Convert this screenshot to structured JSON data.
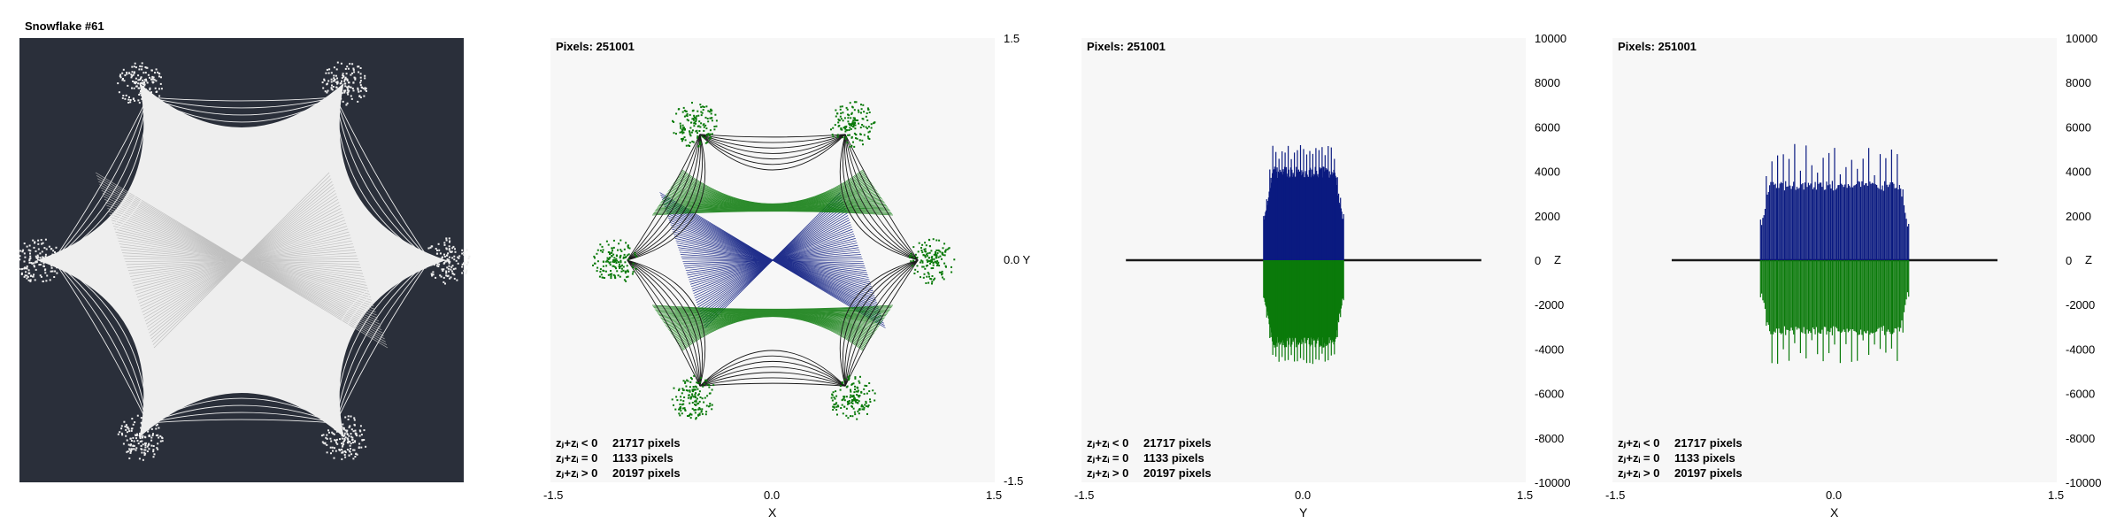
{
  "title": "Snowflake #61",
  "pixels_label": "Pixels: 251001",
  "colors": {
    "background": "#ffffff",
    "panel": "#f7f7f7",
    "thumb_bg": "#2a2f3a",
    "thumb_fg": "#eeeeee",
    "green": "#0a7a0a",
    "blue": "#0a1a80",
    "dark": "#1a1a1a",
    "legend_zero": "#7a0000"
  },
  "legend": [
    {
      "label": "zⱼ+zᵢ < 0",
      "count": "21717 pixels",
      "color": "#0a7a0a"
    },
    {
      "label": "zⱼ+zᵢ = 0",
      "count": "1133 pixels",
      "color": "#7a0000"
    },
    {
      "label": "zⱼ+zᵢ > 0",
      "count": "20197 pixels",
      "color": "#111111"
    }
  ],
  "chart_data": [
    {
      "type": "scatter",
      "view": "x-y",
      "xlabel": "X",
      "ylabel": "Y",
      "xlim": [
        -1.5,
        1.5
      ],
      "ylim": [
        -1.5,
        1.5
      ],
      "xticks": [
        "-1.5",
        "0.0",
        "1.5"
      ],
      "yticks": [
        "1.5",
        "0.0 Y",
        "-1.5"
      ],
      "pixels": 251001,
      "series": [
        {
          "color": "#0a7a0a",
          "count": 21717
        },
        {
          "color": "#7a0000",
          "count": 1133
        },
        {
          "color": "#111111",
          "count": 20197
        }
      ]
    },
    {
      "type": "area",
      "view": "y-z",
      "xlabel": "Y",
      "ylabel": "Z",
      "xlim": [
        -1.5,
        1.5
      ],
      "ylim": [
        -10000,
        10000
      ],
      "xticks": [
        "-1.5",
        "0.0",
        "1.5"
      ],
      "yticks": [
        "10000",
        "8000",
        "6000",
        "4000",
        "2000",
        "0",
        "-2000",
        "-4000",
        "-6000",
        "-8000",
        "-10000"
      ],
      "baseline_range": [
        -1.2,
        1.2
      ],
      "positive": {
        "x_range": [
          -0.27,
          0.27
        ],
        "peak": 5200,
        "typical": 4500
      },
      "negative": {
        "x_range": [
          -0.27,
          0.27
        ],
        "peak": -4700,
        "typical": -4200
      }
    },
    {
      "type": "area",
      "view": "x-z",
      "xlabel": "X",
      "ylabel": "Z",
      "xlim": [
        -1.5,
        1.5
      ],
      "ylim": [
        -10000,
        10000
      ],
      "xticks": [
        "-1.5",
        "0.0",
        "1.5"
      ],
      "yticks": [
        "10000",
        "8000",
        "6000",
        "4000",
        "2000",
        "0",
        "-2000",
        "-4000",
        "-6000",
        "-8000",
        "-10000"
      ],
      "baseline_range": [
        -1.1,
        1.1
      ],
      "positive": {
        "x_range": [
          -0.5,
          0.5
        ],
        "peak": 5300,
        "typical": 3800
      },
      "negative": {
        "x_range": [
          -0.5,
          0.5
        ],
        "peak": -4700,
        "typical": -3600
      }
    }
  ]
}
